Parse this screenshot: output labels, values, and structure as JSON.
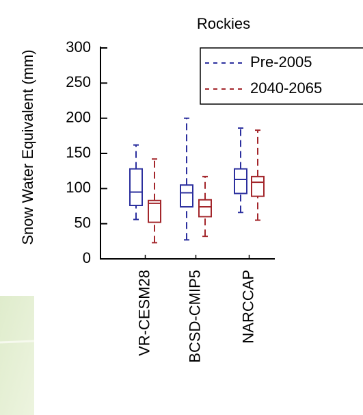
{
  "chart_data": {
    "type": "box",
    "title": "Rockies",
    "y_label": "Snow Water Equivalent (mm)",
    "categories": [
      "VR-CESM28",
      "BCSD-CMIP5",
      "NARCCAP"
    ],
    "series": [
      {
        "name": "Pre-2005",
        "color": "#2b2f9e",
        "min": [
          56,
          27,
          66
        ],
        "q1": [
          76,
          74,
          93
        ],
        "median": [
          95,
          94,
          113
        ],
        "q3": [
          128,
          105,
          128
        ],
        "max": [
          162,
          200,
          186
        ]
      },
      {
        "name": "2040-2065",
        "color": "#a3262b",
        "min": [
          23,
          32,
          55
        ],
        "q1": [
          52,
          60,
          89
        ],
        "median": [
          79,
          74,
          109
        ],
        "q3": [
          83,
          84,
          117
        ],
        "max": [
          142,
          117,
          183
        ]
      }
    ],
    "ylim": [
      0,
      300
    ],
    "yticks": [
      0,
      50,
      100,
      150,
      200,
      250,
      300
    ],
    "legend": "upper right"
  }
}
